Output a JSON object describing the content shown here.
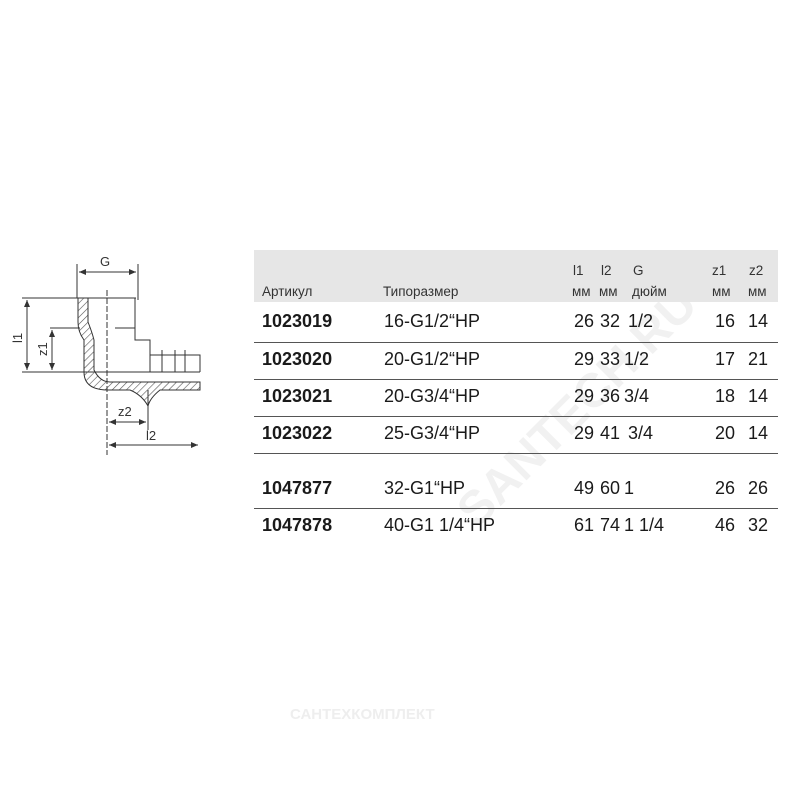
{
  "diagram": {
    "labels": {
      "G": "G",
      "l1": "l1",
      "z1": "z1",
      "z2": "z2",
      "l2": "l2"
    }
  },
  "table": {
    "headers": {
      "article": "Артикул",
      "size": "Типоразмер",
      "l1": "l1",
      "l1_unit": "мм",
      "l2": "l2",
      "l2_unit": "мм",
      "G": "G",
      "G_unit": "дюйм",
      "z1": "z1",
      "z1_unit": "мм",
      "z2": "z2",
      "z2_unit": "мм"
    },
    "rows": [
      {
        "article": "1023019",
        "size": "16-G1/2“HP",
        "l1": "26",
        "l2": "32",
        "G": "1/2",
        "z1": "16",
        "z2": "14"
      },
      {
        "article": "1023020",
        "size": "20-G1/2“HP",
        "l1": "29",
        "l2": "33",
        "G": "1/2",
        "z1": "17",
        "z2": "21"
      },
      {
        "article": "1023021",
        "size": "20-G3/4“HP",
        "l1": "29",
        "l2": "36",
        "G": "3/4",
        "z1": "18",
        "z2": "14"
      },
      {
        "article": "1023022",
        "size": "25-G3/4“HP",
        "l1": "29",
        "l2": "41",
        "G": "3/4",
        "z1": "20",
        "z2": "14"
      },
      {
        "article": "1047877",
        "size": "32-G1“HP",
        "l1": "49",
        "l2": "60",
        "G": "1",
        "z1": "26",
        "z2": "26"
      },
      {
        "article": "1047878",
        "size": "40-G1 1/4“HP",
        "l1": "61",
        "l2": "74",
        "G": "1 1/4",
        "z1": "46",
        "z2": "32"
      }
    ]
  },
  "watermarks": {
    "diagonal": "SANTECH.RU",
    "bottom": "САНТЕХКОМПЛЕКТ"
  }
}
